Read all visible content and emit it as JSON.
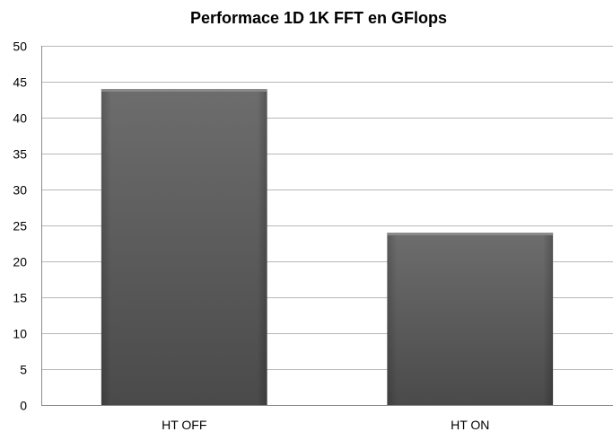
{
  "chart_data": {
    "type": "bar",
    "title": "Performace 1D 1K FFT en GFlops",
    "categories": [
      "HT OFF",
      "HT ON"
    ],
    "values": [
      44,
      24
    ],
    "xlabel": "",
    "ylabel": "",
    "ylim": [
      0,
      50
    ],
    "yticks": [
      0,
      5,
      10,
      15,
      20,
      25,
      30,
      35,
      40,
      45,
      50
    ],
    "grid": true,
    "legend": "none",
    "bar_color": "#5a5a5a"
  }
}
